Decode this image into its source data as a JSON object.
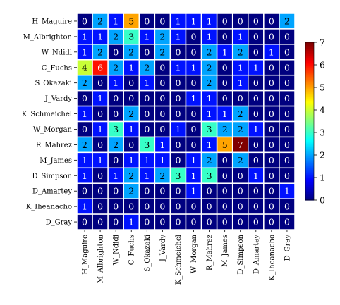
{
  "chart_data": {
    "type": "heatmap",
    "colormap": "jet",
    "grid_lines": "white",
    "legend": "right colorbar",
    "vmin": 0,
    "vmax": 7,
    "colorbar_ticks": [
      0,
      1,
      2,
      3,
      4,
      5,
      6,
      7
    ],
    "row_labels": [
      "H_Maguire",
      "M_Albrighton",
      "W_Ndidi",
      "C_Fuchs",
      "S_Okazaki",
      "J_Vardy",
      "K_Schmeichel",
      "W_Morgan",
      "R_Mahrez",
      "M_James",
      "D_Simpson",
      "D_Amartey",
      "K_Iheanacho",
      "D_Gray"
    ],
    "col_labels": [
      "H_Maguire",
      "M_Albrighton",
      "W_Ndidi",
      "C_Fuchs",
      "S_Okazaki",
      "J_Vardy",
      "K_Schmeichel",
      "W_Morgan",
      "R_Mahrez",
      "M_James",
      "D_Simpson",
      "D_Amartey",
      "K_Iheanacho",
      "D_Gray"
    ],
    "values": [
      [
        0,
        2,
        1,
        5,
        0,
        0,
        1,
        1,
        1,
        0,
        0,
        0,
        0,
        2
      ],
      [
        1,
        1,
        2,
        3,
        1,
        2,
        1,
        0,
        1,
        0,
        1,
        0,
        0,
        0
      ],
      [
        1,
        2,
        0,
        2,
        0,
        2,
        0,
        0,
        2,
        1,
        2,
        0,
        1,
        0
      ],
      [
        4,
        6,
        2,
        1,
        2,
        0,
        1,
        1,
        2,
        0,
        1,
        1,
        0,
        0
      ],
      [
        2,
        0,
        1,
        0,
        1,
        0,
        0,
        0,
        2,
        0,
        1,
        0,
        0,
        0
      ],
      [
        0,
        1,
        0,
        0,
        0,
        0,
        0,
        1,
        1,
        0,
        0,
        0,
        0,
        0
      ],
      [
        1,
        0,
        0,
        2,
        0,
        0,
        0,
        0,
        1,
        1,
        2,
        0,
        0,
        0
      ],
      [
        0,
        1,
        3,
        1,
        0,
        0,
        1,
        0,
        3,
        2,
        2,
        1,
        0,
        0
      ],
      [
        2,
        0,
        2,
        0,
        3,
        1,
        0,
        0,
        1,
        5,
        7,
        0,
        0,
        0
      ],
      [
        1,
        1,
        0,
        1,
        1,
        1,
        0,
        1,
        2,
        0,
        2,
        0,
        0,
        0
      ],
      [
        1,
        0,
        1,
        2,
        1,
        2,
        3,
        1,
        3,
        0,
        0,
        1,
        0,
        0
      ],
      [
        0,
        0,
        0,
        2,
        0,
        0,
        0,
        1,
        0,
        0,
        0,
        0,
        0,
        1
      ],
      [
        1,
        0,
        0,
        0,
        0,
        0,
        0,
        0,
        0,
        0,
        0,
        0,
        0,
        0
      ],
      [
        0,
        0,
        0,
        1,
        0,
        0,
        0,
        0,
        0,
        0,
        0,
        0,
        0,
        0
      ]
    ]
  }
}
